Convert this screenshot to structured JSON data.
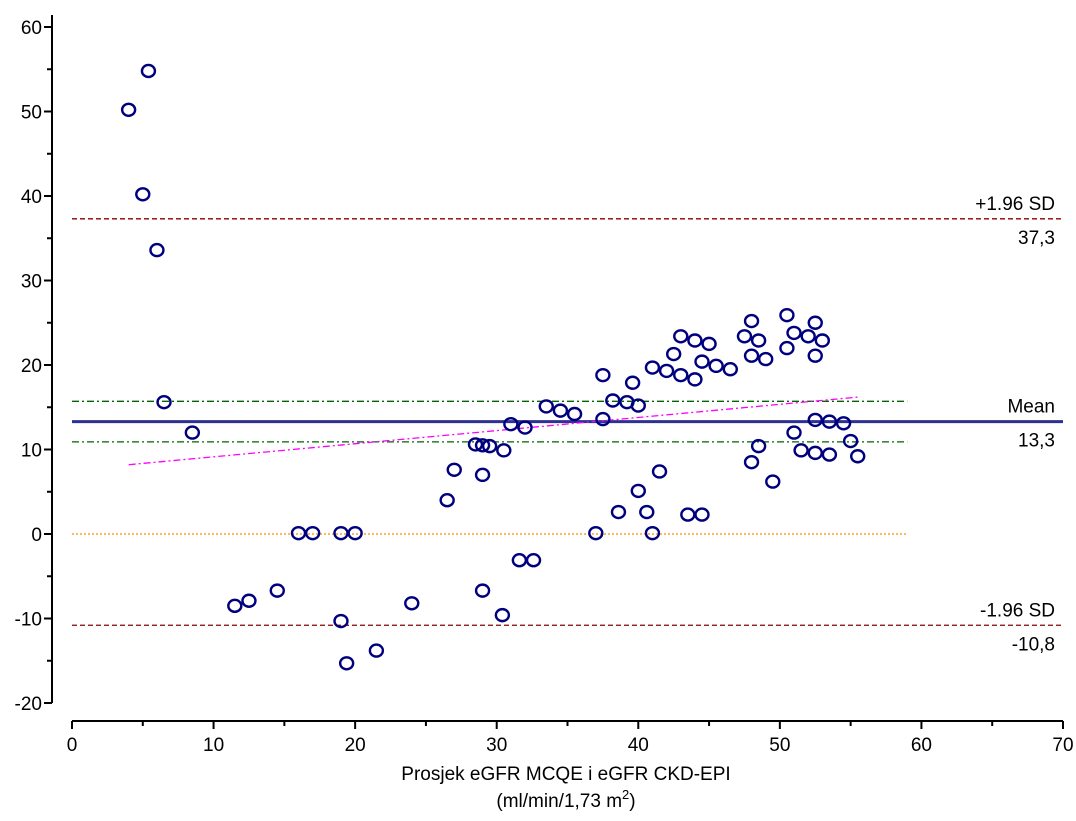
{
  "chart_data": {
    "type": "scatter",
    "xlabel": "Prosjek eGFR MCQE i eGFR CKD-EPI",
    "xlabel_unit_prefix": "(ml/min/1,73 m",
    "xlabel_unit_sup": "2",
    "xlabel_unit_suffix": ")",
    "ylabel": "",
    "xlim": [
      0,
      70
    ],
    "ylim": [
      -20,
      60
    ],
    "x_ticks": [
      0,
      10,
      20,
      30,
      40,
      50,
      60,
      70
    ],
    "y_ticks": [
      -20,
      -10,
      0,
      10,
      20,
      30,
      40,
      50,
      60
    ],
    "grid": false,
    "reference_lines": [
      {
        "name": "upper_loa",
        "label": "+1.96 SD",
        "value_label": "37,3",
        "y": 37.3,
        "x_range": [
          0,
          70
        ],
        "style": "dashed",
        "color": "#8b0000"
      },
      {
        "name": "mean",
        "label": "Mean",
        "value_label": "13,3",
        "y": 13.3,
        "x_range": [
          0,
          70
        ],
        "style": "solid",
        "color": "#2e3192"
      },
      {
        "name": "lower_loa",
        "label": "-1.96 SD",
        "value_label": "-10,8",
        "y": -10.8,
        "x_range": [
          0,
          70
        ],
        "style": "dashed",
        "color": "#8b0000"
      },
      {
        "name": "mean_ci_upper",
        "y": 15.7,
        "x_range": [
          0,
          59
        ],
        "style": "dashdot",
        "color": "#006400"
      },
      {
        "name": "mean_ci_lower",
        "y": 10.9,
        "x_range": [
          0,
          59
        ],
        "style": "dashdot",
        "color": "#006400"
      },
      {
        "name": "zero_line",
        "y": 0,
        "x_range": [
          0,
          59
        ],
        "style": "dotted",
        "color": "#ff8c00"
      }
    ],
    "regression_line": {
      "x": [
        4,
        55.5
      ],
      "y": [
        8.2,
        16.2
      ],
      "style": "dashdot",
      "color": "#ff00ff"
    },
    "points": [
      [
        4,
        50.2
      ],
      [
        5.4,
        54.8
      ],
      [
        5,
        40.2
      ],
      [
        6,
        33.6
      ],
      [
        6.5,
        15.6
      ],
      [
        8.5,
        12
      ],
      [
        11.5,
        -8.5
      ],
      [
        12.5,
        -7.9
      ],
      [
        14.5,
        -6.7
      ],
      [
        16,
        0.1
      ],
      [
        17,
        0.1
      ],
      [
        19,
        0.1
      ],
      [
        20,
        0.1
      ],
      [
        19,
        -10.3
      ],
      [
        19.4,
        -15.3
      ],
      [
        21.5,
        -13.8
      ],
      [
        24,
        -8.2
      ],
      [
        26.5,
        4
      ],
      [
        27,
        7.6
      ],
      [
        28.5,
        10.6
      ],
      [
        29,
        10.5
      ],
      [
        29.5,
        10.4
      ],
      [
        30.5,
        9.9
      ],
      [
        29,
        7
      ],
      [
        29,
        -6.7
      ],
      [
        30.4,
        -9.6
      ],
      [
        31,
        13
      ],
      [
        32,
        12.6
      ],
      [
        31.6,
        -3.1
      ],
      [
        32.6,
        -3.1
      ],
      [
        33.5,
        15.1
      ],
      [
        34.5,
        14.6
      ],
      [
        35.5,
        14.2
      ],
      [
        37,
        0.1
      ],
      [
        37.5,
        13.6
      ],
      [
        37.5,
        18.8
      ],
      [
        38.2,
        15.8
      ],
      [
        38.6,
        2.6
      ],
      [
        39.2,
        15.6
      ],
      [
        39.6,
        17.9
      ],
      [
        40,
        15.2
      ],
      [
        40,
        5.1
      ],
      [
        40.6,
        2.6
      ],
      [
        41,
        0.1
      ],
      [
        41,
        19.7
      ],
      [
        41.5,
        7.4
      ],
      [
        42,
        19.3
      ],
      [
        42.5,
        21.3
      ],
      [
        43,
        23.4
      ],
      [
        43,
        18.8
      ],
      [
        43.5,
        2.3
      ],
      [
        44,
        22.9
      ],
      [
        44,
        18.3
      ],
      [
        44.5,
        20.4
      ],
      [
        44.5,
        2.3
      ],
      [
        45,
        22.5
      ],
      [
        45.5,
        19.9
      ],
      [
        46.5,
        19.5
      ],
      [
        47.5,
        23.4
      ],
      [
        48,
        25.2
      ],
      [
        48,
        21.1
      ],
      [
        48,
        8.5
      ],
      [
        48.5,
        22.9
      ],
      [
        48.5,
        10.4
      ],
      [
        49,
        20.7
      ],
      [
        49.5,
        6.2
      ],
      [
        50.5,
        25.9
      ],
      [
        50.5,
        22
      ],
      [
        51,
        23.8
      ],
      [
        51,
        12
      ],
      [
        51.5,
        9.9
      ],
      [
        52,
        23.4
      ],
      [
        52.5,
        25
      ],
      [
        52.5,
        21.1
      ],
      [
        52.5,
        13.5
      ],
      [
        52.5,
        9.6
      ],
      [
        53,
        22.9
      ],
      [
        53.5,
        13.3
      ],
      [
        53.5,
        9.4
      ],
      [
        54.5,
        13.1
      ],
      [
        55,
        11
      ],
      [
        55.5,
        9.2
      ]
    ]
  }
}
